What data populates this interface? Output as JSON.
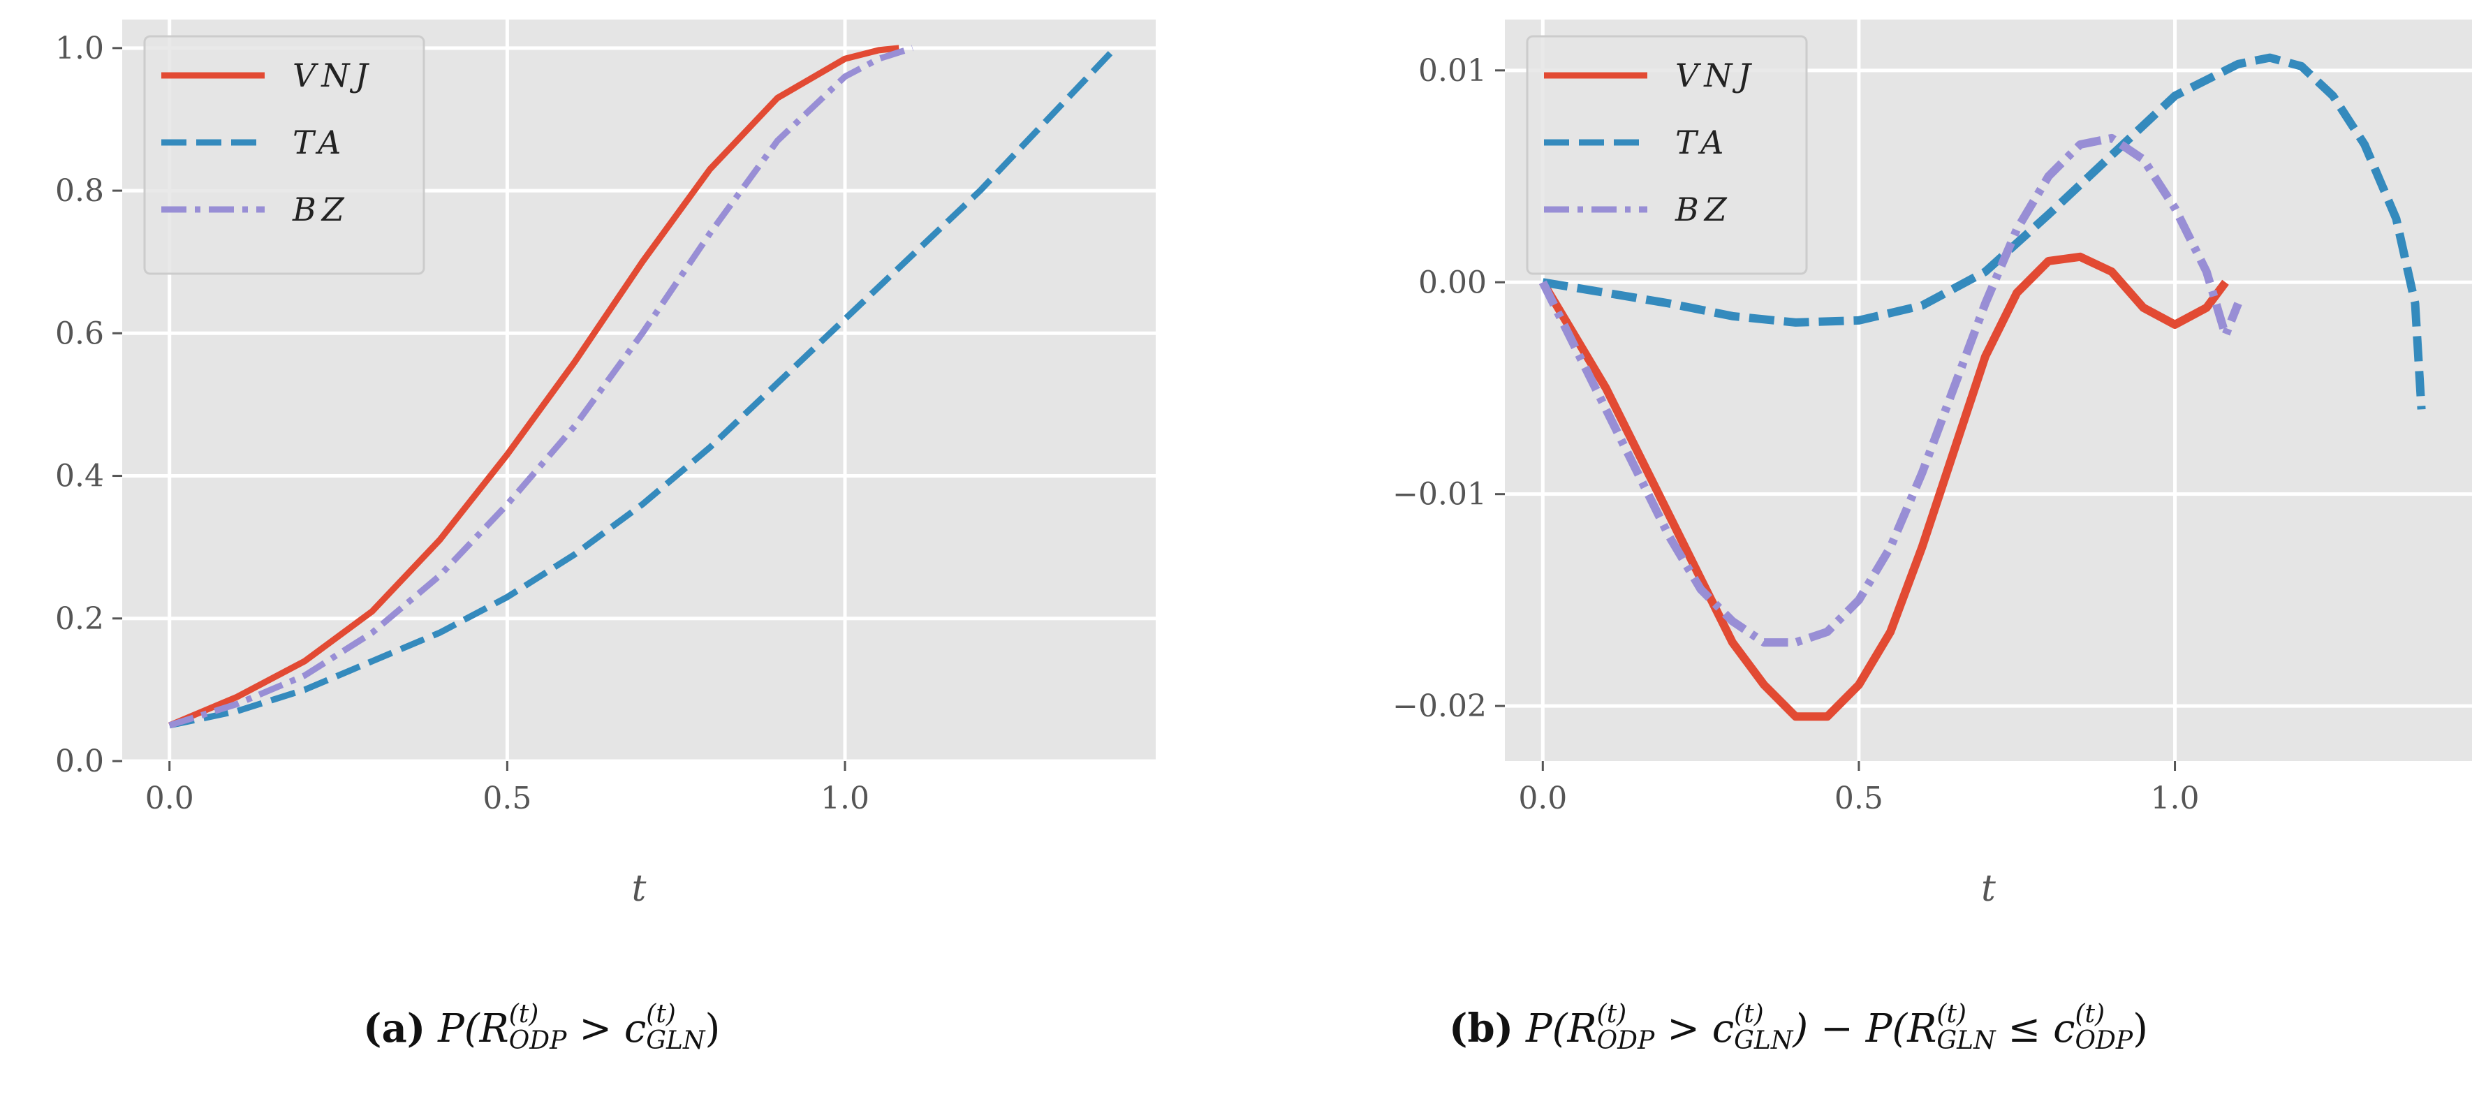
{
  "chart_data": [
    {
      "type": "line",
      "panel": "a",
      "xlabel": "t",
      "ylabel": "",
      "xlim": [
        -0.07,
        1.46
      ],
      "ylim": [
        0.0,
        1.04
      ],
      "xticks": [
        "0.0",
        "0.5",
        "1.0"
      ],
      "yticks": [
        "0.0",
        "0.2",
        "0.4",
        "0.6",
        "0.8",
        "1.0"
      ],
      "grid": true,
      "legend_position": "top-left",
      "series": [
        {
          "name": "VNJ",
          "color": "#E24A33",
          "style": "solid",
          "x": [
            0,
            0.1,
            0.2,
            0.3,
            0.4,
            0.5,
            0.6,
            0.7,
            0.8,
            0.9,
            1.0,
            1.05,
            1.08
          ],
          "y": [
            0.05,
            0.09,
            0.14,
            0.21,
            0.31,
            0.43,
            0.56,
            0.7,
            0.83,
            0.93,
            0.985,
            0.997,
            1.0
          ]
        },
        {
          "name": "TA",
          "color": "#348ABD",
          "style": "dashed",
          "x": [
            0,
            0.1,
            0.2,
            0.3,
            0.4,
            0.5,
            0.6,
            0.7,
            0.8,
            0.9,
            1.0,
            1.1,
            1.2,
            1.3,
            1.4
          ],
          "y": [
            0.05,
            0.07,
            0.1,
            0.14,
            0.18,
            0.23,
            0.29,
            0.36,
            0.44,
            0.53,
            0.62,
            0.71,
            0.8,
            0.9,
            1.0
          ]
        },
        {
          "name": "BZ",
          "color": "#988ED5",
          "style": "dashdot",
          "x": [
            0,
            0.1,
            0.2,
            0.3,
            0.4,
            0.5,
            0.6,
            0.7,
            0.8,
            0.9,
            1.0,
            1.05,
            1.1
          ],
          "y": [
            0.05,
            0.08,
            0.12,
            0.18,
            0.26,
            0.36,
            0.47,
            0.6,
            0.74,
            0.87,
            0.96,
            0.985,
            1.0
          ]
        }
      ],
      "caption": {
        "label": "(a)",
        "parts": [
          "P(R",
          "ODP",
          "(t)",
          " > c",
          "GLN",
          "(t)",
          ")"
        ]
      }
    },
    {
      "type": "line",
      "panel": "b",
      "xlabel": "t",
      "ylabel": "",
      "xlim": [
        -0.06,
        1.47
      ],
      "ylim": [
        -0.0226,
        0.0124
      ],
      "xticks": [
        "0.0",
        "0.5",
        "1.0"
      ],
      "yticks": [
        "−0.02",
        "−0.01",
        "0.00",
        "0.01"
      ],
      "ytick_values": [
        -0.02,
        -0.01,
        0.0,
        0.01
      ],
      "grid": true,
      "legend_position": "top-left",
      "series": [
        {
          "name": "VNJ",
          "color": "#E24A33",
          "style": "solid",
          "x": [
            0,
            0.05,
            0.1,
            0.15,
            0.2,
            0.25,
            0.3,
            0.35,
            0.4,
            0.45,
            0.5,
            0.55,
            0.6,
            0.65,
            0.7,
            0.75,
            0.8,
            0.85,
            0.9,
            0.95,
            1.0,
            1.05,
            1.08
          ],
          "y": [
            0.0,
            -0.0025,
            -0.005,
            -0.008,
            -0.011,
            -0.014,
            -0.017,
            -0.019,
            -0.0205,
            -0.0205,
            -0.019,
            -0.0165,
            -0.0125,
            -0.008,
            -0.0035,
            -0.0005,
            0.001,
            0.0012,
            0.0005,
            -0.0012,
            -0.002,
            -0.0012,
            0.0
          ]
        },
        {
          "name": "TA",
          "color": "#348ABD",
          "style": "dashed",
          "x": [
            0,
            0.1,
            0.2,
            0.3,
            0.4,
            0.5,
            0.6,
            0.7,
            0.8,
            0.9,
            1.0,
            1.1,
            1.15,
            1.2,
            1.25,
            1.3,
            1.35,
            1.38,
            1.39
          ],
          "y": [
            0.0,
            -0.0005,
            -0.001,
            -0.0016,
            -0.0019,
            -0.0018,
            -0.0011,
            0.0005,
            0.0032,
            0.006,
            0.0088,
            0.0103,
            0.0106,
            0.0102,
            0.0088,
            0.0065,
            0.003,
            -0.001,
            -0.006
          ]
        },
        {
          "name": "BZ",
          "color": "#988ED5",
          "style": "dashdot",
          "x": [
            0,
            0.05,
            0.1,
            0.15,
            0.2,
            0.25,
            0.3,
            0.35,
            0.4,
            0.45,
            0.5,
            0.55,
            0.6,
            0.65,
            0.7,
            0.75,
            0.8,
            0.85,
            0.9,
            0.95,
            1.0,
            1.05,
            1.08,
            1.1
          ],
          "y": [
            0.0,
            -0.003,
            -0.006,
            -0.009,
            -0.012,
            -0.0145,
            -0.016,
            -0.017,
            -0.017,
            -0.0165,
            -0.015,
            -0.0125,
            -0.009,
            -0.005,
            -0.001,
            0.0025,
            0.005,
            0.0065,
            0.0068,
            0.0058,
            0.0035,
            0.0005,
            -0.0025,
            -0.001
          ]
        }
      ],
      "caption": {
        "label": "(b)",
        "parts": [
          "P(R",
          "ODP",
          "(t)",
          " > c",
          "GLN",
          "(t)",
          ") − P(R",
          "GLN",
          "(t)",
          " ≤ c",
          "ODP",
          "(t)",
          ")"
        ]
      }
    }
  ]
}
